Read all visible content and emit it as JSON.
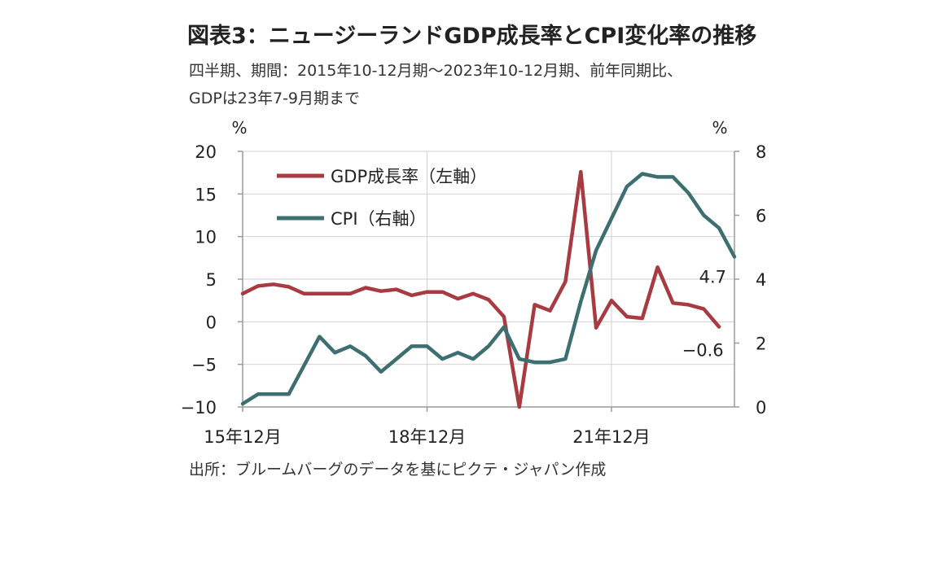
{
  "figure": {
    "title": "図表3：ニュージーランドGDP成長率とCPI変化率の推移",
    "subtitle_line1": "四半期、期間：2015年10-12月期～2023年10-12月期、前年同期比、",
    "subtitle_line2": "GDPは23年7-9月期まで",
    "source": "出所：ブルームバーグのデータを基にピクテ・ジャパン作成"
  },
  "chart_data": {
    "type": "line",
    "left_unit": "%",
    "right_unit": "%",
    "x_tick_labels": [
      "15年12月",
      "18年12月",
      "21年12月"
    ],
    "x_tick_indices": [
      0,
      12,
      24
    ],
    "ylim_left": [
      -10,
      20
    ],
    "ylim_right": [
      0,
      8
    ],
    "left_ticks": [
      "20",
      "15",
      "10",
      "5",
      "0",
      "−5",
      "−10"
    ],
    "right_ticks": [
      "8",
      "6",
      "4",
      "2",
      "0"
    ],
    "grid": true,
    "legend_placement": "top-left",
    "series": [
      {
        "name": "GDP成長率（左軸）",
        "axis": "left",
        "color": "#a83a42",
        "values": [
          3.3,
          4.2,
          4.4,
          4.1,
          3.3,
          3.3,
          3.3,
          3.3,
          4.0,
          3.6,
          3.8,
          3.1,
          3.5,
          3.5,
          2.7,
          3.3,
          2.6,
          0.6,
          -10.0,
          2.0,
          1.3,
          4.7,
          17.6,
          -0.7,
          2.5,
          0.6,
          0.4,
          6.4,
          2.2,
          2.0,
          1.5,
          -0.6,
          null
        ]
      },
      {
        "name": "CPI（右軸）",
        "axis": "right",
        "color": "#3d6e70",
        "values": [
          0.1,
          0.4,
          0.4,
          0.4,
          1.3,
          2.2,
          1.7,
          1.9,
          1.6,
          1.1,
          1.5,
          1.9,
          1.9,
          1.5,
          1.7,
          1.5,
          1.9,
          2.5,
          1.5,
          1.4,
          1.4,
          1.5,
          3.3,
          4.9,
          5.9,
          6.9,
          7.3,
          7.2,
          7.2,
          6.7,
          6.0,
          5.6,
          4.7
        ]
      }
    ],
    "annotations": [
      {
        "series": 1,
        "index": 32,
        "label": "4.7"
      },
      {
        "series": 0,
        "index": 31,
        "label": "−0.6"
      }
    ]
  }
}
